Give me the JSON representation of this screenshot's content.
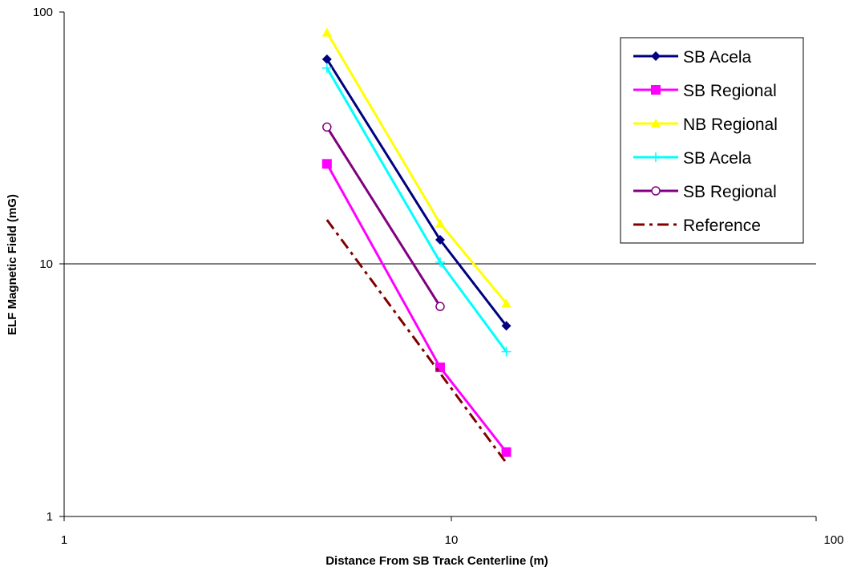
{
  "chart_data": {
    "type": "line",
    "title": "",
    "xlabel": "Distance From SB Track Centerline (m)",
    "ylabel": "ELF Magnetic Field (mG)",
    "xscale": "log",
    "yscale": "log",
    "xlim": [
      1,
      100
    ],
    "ylim": [
      1,
      100
    ],
    "x_ticks": [
      "1",
      "10",
      "100"
    ],
    "y_ticks": [
      "1",
      "10",
      "100"
    ],
    "grid": "horizontal major at 10",
    "legend_position": "top-right",
    "series": [
      {
        "name": "SB Acela",
        "color": "#000080",
        "marker": "diamond",
        "dash": "solid",
        "x": [
          5,
          10,
          15
        ],
        "y": [
          65,
          12.5,
          5.7
        ]
      },
      {
        "name": "SB Regional",
        "color": "#FF00FF",
        "marker": "square",
        "dash": "solid",
        "x": [
          5,
          10,
          15
        ],
        "y": [
          25,
          3.9,
          1.8
        ]
      },
      {
        "name": "NB Regional",
        "color": "#FFFF00",
        "marker": "triangle",
        "dash": "solid",
        "x": [
          5,
          10,
          15
        ],
        "y": [
          83,
          14.5,
          7
        ]
      },
      {
        "name": "SB Acela",
        "color": "#00FFFF",
        "marker": "plus",
        "dash": "solid",
        "x": [
          5,
          10,
          15
        ],
        "y": [
          60,
          10.2,
          4.5
        ]
      },
      {
        "name": "SB Regional",
        "color": "#800080",
        "marker": "circle",
        "dash": "solid",
        "x": [
          5,
          10
        ],
        "y": [
          35,
          6.8
        ]
      },
      {
        "name": "Reference",
        "color": "#800000",
        "marker": "none",
        "dash": "dashdot",
        "x": [
          5,
          15
        ],
        "y": [
          15,
          1.63
        ]
      }
    ]
  }
}
